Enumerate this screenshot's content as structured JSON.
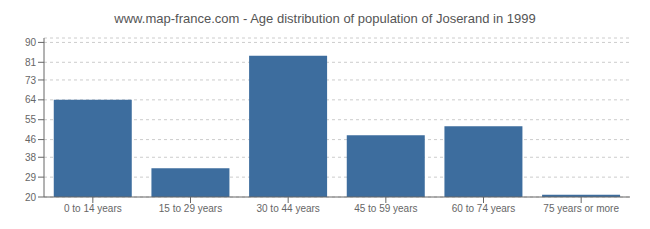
{
  "chart_data": {
    "type": "bar",
    "title": "www.map-france.com - Age distribution of population of Joserand in 1999",
    "categories": [
      "0 to 14 years",
      "15 to 29 years",
      "30 to 44 years",
      "45 to 59 years",
      "60 to 74 years",
      "75 years or more"
    ],
    "values": [
      64,
      33,
      84,
      48,
      52,
      21
    ],
    "color": "#3d6d9e",
    "ylim": [
      20,
      92
    ],
    "yticks": [
      20,
      29,
      38,
      46,
      55,
      64,
      73,
      81,
      90
    ],
    "grid": true
  }
}
